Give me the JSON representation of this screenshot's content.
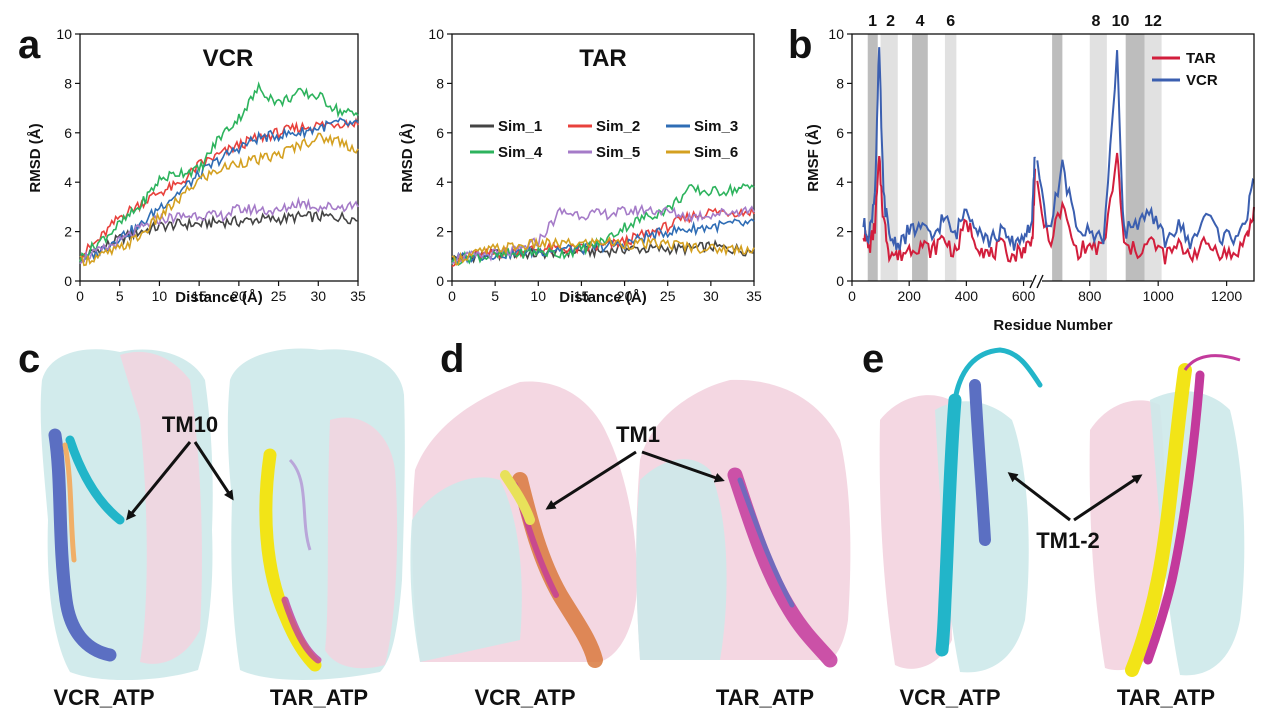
{
  "panel_labels": [
    "a",
    "b",
    "c",
    "d",
    "e"
  ],
  "colors": {
    "sim_1": "#444444",
    "sim_2": "#e8413c",
    "sim_3": "#2f6db5",
    "sim_4": "#2db35d",
    "sim_5": "#a57bc8",
    "sim_6": "#d4a020",
    "tar": "#d21e3c",
    "vcr": "#3b5fb0",
    "surface_cyan": "#cde9ea",
    "surface_pink": "#f3d3df"
  },
  "chart_data": [
    {
      "type": "line",
      "title": "VCR",
      "xlabel": "Distance (Å)",
      "ylabel": "RMSD (Å)",
      "xlim": [
        0,
        35
      ],
      "ylim": [
        0,
        10
      ],
      "xticks": [
        0,
        5,
        10,
        15,
        20,
        25,
        30,
        35
      ],
      "yticks": [
        0,
        2,
        4,
        6,
        8,
        10
      ],
      "x": [
        0,
        2.5,
        5,
        7.5,
        10,
        12.5,
        15,
        17.5,
        20,
        22.5,
        25,
        27.5,
        30,
        32.5,
        35
      ],
      "series": [
        {
          "name": "Sim_1",
          "values": [
            0.9,
            1.3,
            1.7,
            2.0,
            2.2,
            2.3,
            2.3,
            2.4,
            2.4,
            2.5,
            2.5,
            2.6,
            2.6,
            2.6,
            2.5
          ]
        },
        {
          "name": "Sim_2",
          "values": [
            1.0,
            1.7,
            2.6,
            3.1,
            3.6,
            3.9,
            4.7,
            5.1,
            5.5,
            5.8,
            6.0,
            6.2,
            6.3,
            6.4,
            6.4
          ]
        },
        {
          "name": "Sim_3",
          "values": [
            0.8,
            1.2,
            1.8,
            2.2,
            3.0,
            3.6,
            4.3,
            4.9,
            5.4,
            5.8,
            5.9,
            6.0,
            6.2,
            6.4,
            6.3
          ]
        },
        {
          "name": "Sim_4",
          "values": [
            0.9,
            1.6,
            2.3,
            3.0,
            4.1,
            4.4,
            4.5,
            5.8,
            6.6,
            7.8,
            7.2,
            7.6,
            7.5,
            6.9,
            6.7
          ]
        },
        {
          "name": "Sim_5",
          "values": [
            0.9,
            1.2,
            1.6,
            2.1,
            2.5,
            2.6,
            2.7,
            2.6,
            2.9,
            2.9,
            2.8,
            3.2,
            3.0,
            3.0,
            3.1
          ]
        },
        {
          "name": "Sim_6",
          "values": [
            0.8,
            1.0,
            1.3,
            1.8,
            2.6,
            3.3,
            4.1,
            4.5,
            4.8,
            4.9,
            5.1,
            5.5,
            5.8,
            5.7,
            5.3
          ]
        }
      ],
      "legend": "none"
    },
    {
      "type": "line",
      "title": "TAR",
      "xlabel": "Distance (Å)",
      "ylabel": "RMSD (Å)",
      "xlim": [
        0,
        35
      ],
      "ylim": [
        0,
        10
      ],
      "xticks": [
        0,
        5,
        10,
        15,
        20,
        25,
        30,
        35
      ],
      "yticks": [
        0,
        2,
        4,
        6,
        8,
        10
      ],
      "x": [
        0,
        2.5,
        5,
        7.5,
        10,
        12.5,
        15,
        17.5,
        20,
        22.5,
        25,
        27.5,
        30,
        32.5,
        35
      ],
      "series": [
        {
          "name": "Sim_1",
          "values": [
            0.9,
            1.0,
            1.1,
            1.1,
            1.1,
            1.2,
            1.2,
            1.2,
            1.3,
            1.3,
            1.3,
            1.3,
            1.4,
            1.3,
            1.2
          ]
        },
        {
          "name": "Sim_2",
          "values": [
            0.8,
            1.0,
            1.1,
            1.2,
            1.3,
            1.3,
            1.3,
            1.4,
            1.6,
            1.9,
            2.2,
            2.6,
            2.8,
            2.8,
            2.8
          ]
        },
        {
          "name": "Sim_3",
          "values": [
            0.9,
            1.0,
            1.1,
            1.1,
            1.2,
            1.3,
            1.3,
            1.4,
            1.5,
            1.8,
            2.0,
            2.1,
            2.2,
            2.3,
            2.3
          ]
        },
        {
          "name": "Sim_4",
          "values": [
            0.8,
            1.0,
            1.0,
            1.1,
            1.2,
            1.1,
            1.3,
            1.6,
            2.2,
            2.6,
            2.9,
            3.7,
            3.6,
            3.7,
            3.8
          ]
        },
        {
          "name": "Sim_5",
          "values": [
            0.9,
            1.0,
            1.1,
            1.2,
            1.6,
            2.8,
            2.7,
            2.7,
            2.8,
            2.9,
            2.8,
            2.6,
            2.7,
            2.8,
            2.9
          ]
        },
        {
          "name": "Sim_6",
          "values": [
            0.8,
            1.1,
            1.3,
            1.4,
            1.5,
            1.5,
            1.5,
            1.6,
            1.5,
            1.5,
            1.5,
            1.4,
            1.3,
            1.3,
            1.3
          ]
        }
      ],
      "legend": "center-right, 3 columns"
    },
    {
      "type": "line",
      "xlabel": "Residue Number",
      "ylabel": "RMSF (Å)",
      "ylim": [
        0,
        10
      ],
      "yticks": [
        0,
        2,
        4,
        6,
        8,
        10
      ],
      "xticks": [
        "0",
        "200",
        "400",
        "600",
        "800",
        "1000",
        "1200"
      ],
      "axis_break_after": 640,
      "region_numbers": [
        "1",
        "2",
        "4",
        "6",
        "8",
        "10",
        "12"
      ],
      "x": [
        40,
        60,
        80,
        95,
        110,
        130,
        160,
        200,
        240,
        280,
        320,
        360,
        400,
        440,
        480,
        520,
        560,
        600,
        630,
        640,
        680,
        720,
        760,
        800,
        840,
        880,
        900,
        940,
        980,
        1020,
        1060,
        1100,
        1140,
        1180,
        1220,
        1260,
        1280
      ],
      "series": [
        {
          "name": "TAR",
          "values": [
            2.0,
            1.3,
            2.2,
            4.9,
            2.5,
            1.2,
            1.0,
            1.3,
            1.5,
            1.2,
            1.8,
            1.1,
            2.4,
            1.5,
            1.0,
            1.4,
            1.0,
            1.3,
            1.6,
            4.2,
            1.5,
            3.0,
            1.2,
            1.4,
            1.3,
            5.1,
            1.4,
            1.2,
            1.6,
            1.0,
            1.4,
            1.1,
            1.5,
            1.2,
            1.0,
            1.8,
            2.8
          ]
        },
        {
          "name": "VCR",
          "values": [
            2.3,
            1.8,
            3.6,
            9.3,
            3.5,
            1.8,
            1.5,
            2.0,
            2.2,
            1.7,
            2.6,
            1.8,
            3.0,
            2.2,
            1.6,
            2.0,
            1.5,
            1.8,
            2.4,
            5.2,
            2.0,
            4.6,
            2.2,
            1.9,
            1.8,
            9.0,
            2.0,
            2.4,
            2.6,
            1.7,
            2.2,
            1.5,
            2.8,
            1.8,
            1.8,
            2.6,
            4.1
          ]
        }
      ],
      "legend": "top-right"
    }
  ],
  "structure_panels": {
    "c": {
      "annotation": "TM10",
      "captions": [
        "VCR_ATP",
        "TAR_ATP"
      ]
    },
    "d": {
      "annotation": "TM1",
      "captions": [
        "VCR_ATP",
        "TAR_ATP"
      ]
    },
    "e": {
      "annotation": "TM1-2",
      "captions": [
        "VCR_ATP",
        "TAR_ATP"
      ]
    }
  }
}
